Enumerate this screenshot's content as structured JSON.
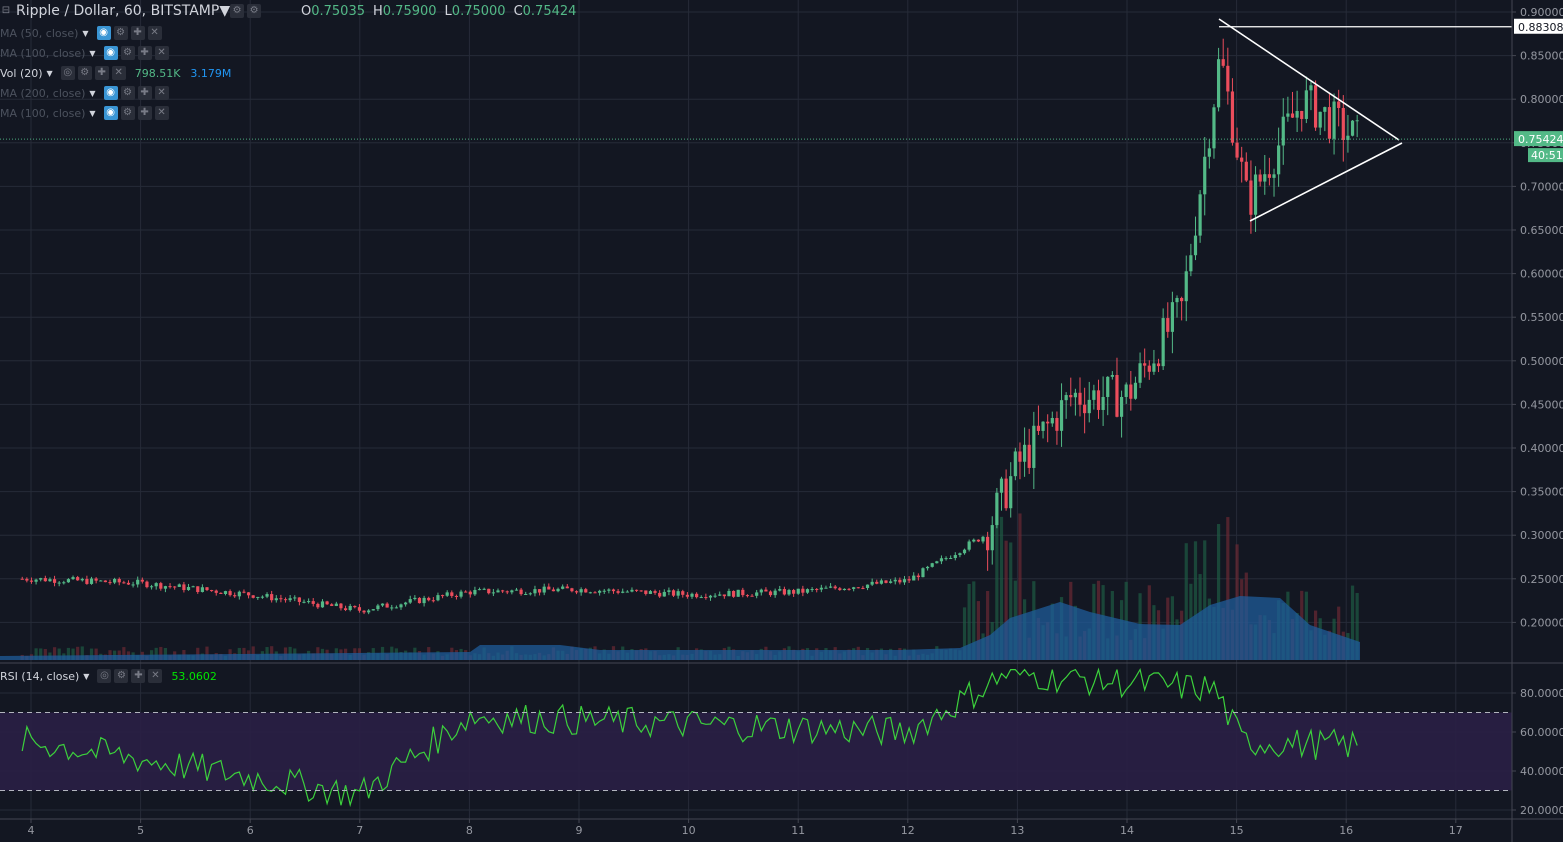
{
  "header": {
    "symbol_title": "Ripple / Dollar, 60, BITSTAMP",
    "ohlc": [
      {
        "key": "O",
        "value": "0.75035"
      },
      {
        "key": "H",
        "value": "0.75900"
      },
      {
        "key": "L",
        "value": "0.75000"
      },
      {
        "key": "C",
        "value": "0.75424"
      }
    ]
  },
  "indicators": [
    {
      "label": "MA (50, close)",
      "active": false
    },
    {
      "label": "MA (100, close)",
      "active": false
    },
    {
      "label": "Vol (20)",
      "active": true,
      "value1": "798.51K",
      "value2": "3.179M"
    },
    {
      "label": "MA (200, close)",
      "active": false
    },
    {
      "label": "MA (100, close)",
      "active": false
    }
  ],
  "rsi": {
    "label": "RSI (14, close)",
    "value": "53.0602"
  },
  "price_axis": {
    "labels": [
      "0.90000",
      "0.85000",
      "0.80000",
      "0.75000",
      "0.70000",
      "0.65000",
      "0.60000",
      "0.55000",
      "0.50000",
      "0.45000",
      "0.40000",
      "0.35000",
      "0.30000",
      "0.25000",
      "0.20000"
    ],
    "ymin": 0.15,
    "ymax": 0.9,
    "line_label": "0.88308",
    "last_price": "0.75424",
    "countdown": "40:51"
  },
  "rsi_axis": {
    "labels": [
      "80.0000",
      "60.0000",
      "40.0000",
      "20.0000"
    ],
    "upper_band": 70,
    "lower_band": 30
  },
  "time_axis": {
    "labels": [
      "4",
      "5",
      "6",
      "7",
      "8",
      "9",
      "10",
      "11",
      "12",
      "13",
      "14",
      "15",
      "16",
      "17"
    ]
  },
  "colors": {
    "up": "#53b987",
    "down": "#eb4d5c",
    "volume_ma": "#1f5c99",
    "rsi_line": "#3cd13c",
    "rsi_band": "#2a1f45",
    "drawing": "#ffffff",
    "last_price": "#53b987"
  },
  "chart_data": {
    "type": "candlestick",
    "key_points": [
      {
        "day": 4,
        "close": 0.25
      },
      {
        "day": 5,
        "close": 0.245
      },
      {
        "day": 6,
        "close": 0.232
      },
      {
        "day": 7,
        "close": 0.214
      },
      {
        "day": 8,
        "close": 0.235
      },
      {
        "day": 9,
        "close": 0.238
      },
      {
        "day": 10,
        "close": 0.232
      },
      {
        "day": 11,
        "close": 0.235
      },
      {
        "day": 12,
        "close": 0.248
      },
      {
        "day": 12.7,
        "close": 0.3
      },
      {
        "day": 13,
        "close": 0.38
      },
      {
        "day": 13.5,
        "close": 0.46
      },
      {
        "day": 14,
        "close": 0.46
      },
      {
        "day": 14.5,
        "close": 0.56
      },
      {
        "day": 14.85,
        "close": 0.85
      },
      {
        "day": 15.1,
        "close": 0.68
      },
      {
        "day": 15.6,
        "close": 0.8
      },
      {
        "day": 16.1,
        "close": 0.754
      }
    ],
    "rsi_key_points": [
      {
        "day": 4,
        "value": 55
      },
      {
        "day": 7,
        "value": 28
      },
      {
        "day": 8,
        "value": 68
      },
      {
        "day": 12,
        "value": 60
      },
      {
        "day": 12.9,
        "value": 90
      },
      {
        "day": 14.8,
        "value": 82
      },
      {
        "day": 15.05,
        "value": 55
      },
      {
        "day": 16.1,
        "value": 53
      }
    ]
  }
}
